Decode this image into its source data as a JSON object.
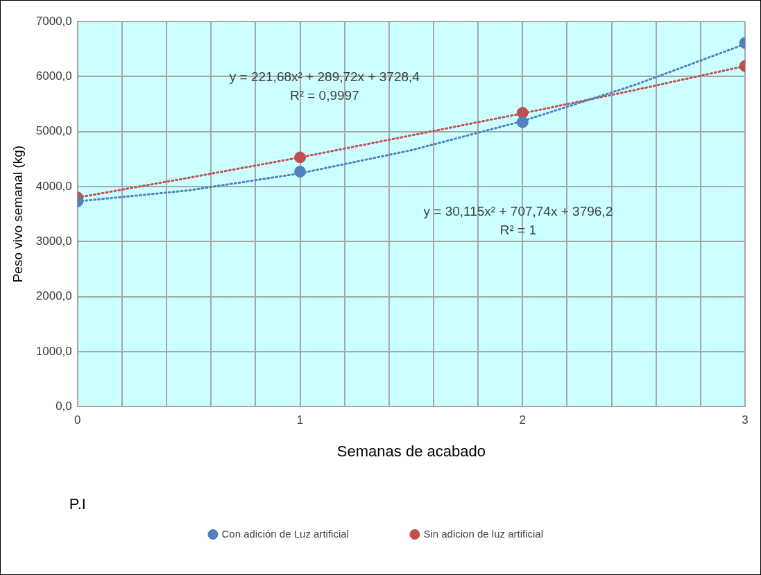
{
  "chart_data": {
    "type": "scatter",
    "xlabel": "Semanas de acabado",
    "ylabel": "Peso vivo semanal (kg)",
    "xlim": [
      0,
      3
    ],
    "xticks": [
      0,
      {
        "value": 0.2,
        "label": null
      },
      {
        "value": 0.4,
        "label": null
      },
      {
        "value": 0.6,
        "label": null
      },
      {
        "value": 0.8,
        "label": null
      },
      1,
      {
        "value": 1.2,
        "label": null
      },
      {
        "value": 1.4,
        "label": null
      },
      {
        "value": 1.6,
        "label": null
      },
      {
        "value": 1.8,
        "label": null
      },
      2,
      {
        "value": 2.2,
        "label": null
      },
      {
        "value": 2.4,
        "label": null
      },
      {
        "value": 2.6,
        "label": null
      },
      {
        "value": 2.8,
        "label": null
      },
      3
    ],
    "ylim": [
      0,
      7000
    ],
    "yticks": [
      {
        "value": 0,
        "label": "0,0"
      },
      {
        "value": 1000,
        "label": "1000,0"
      },
      {
        "value": 2000,
        "label": "2000,0"
      },
      {
        "value": 3000,
        "label": "3000,0"
      },
      {
        "value": 4000,
        "label": "4000,0"
      },
      {
        "value": 5000,
        "label": "5000,0"
      },
      {
        "value": 6000,
        "label": "6000,0"
      },
      {
        "value": 7000,
        "label": "7000,0"
      }
    ],
    "grid": true,
    "legend": "bottom",
    "series": [
      {
        "name": "Con adición de Luz artificial",
        "type": "scatter",
        "marker": "circle",
        "color": "#4f81bd",
        "x": [
          0,
          1,
          2,
          3
        ],
        "values": [
          3730,
          4270,
          5170,
          6610
        ]
      },
      {
        "name": "Sin adicion de luz artificial",
        "type": "scatter",
        "marker": "circle",
        "color": "#c0504d",
        "x": [
          0,
          1,
          2,
          3
        ],
        "values": [
          3800,
          4530,
          5340,
          6190
        ]
      },
      {
        "type": "line",
        "marker": "none",
        "line_style": "dotted",
        "color": "#4f81bd",
        "x": [
          0,
          0.5,
          1,
          1.5,
          2,
          2.5,
          3
        ],
        "values": [
          3730,
          3930,
          4240,
          4660,
          5190,
          5840,
          6590
        ]
      },
      {
        "type": "line",
        "marker": "none",
        "line_style": "dotted",
        "color": "#c0504d",
        "x": [
          0,
          0.5,
          1,
          1.5,
          2,
          2.5,
          3
        ],
        "values": [
          3800,
          4160,
          4530,
          4930,
          5330,
          5750,
          6190
        ]
      }
    ],
    "annotations": [
      "y = 221,68x² + 289,72x + 3728,4\nR² = 0,9997",
      "y = 30,115x² + 707,74x + 3796,2\nR² = 1",
      "P.I"
    ]
  }
}
